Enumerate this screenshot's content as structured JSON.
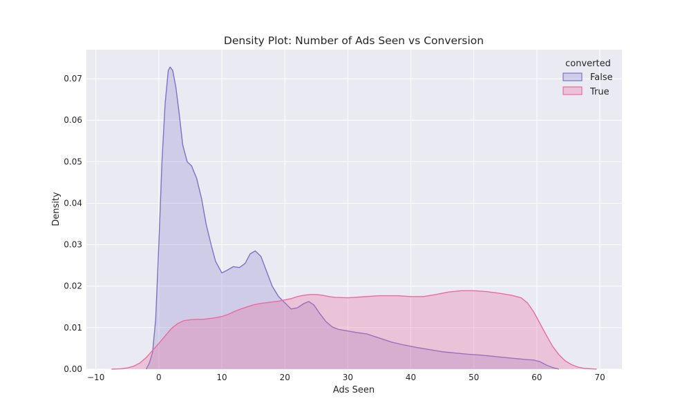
{
  "chart_data": {
    "type": "area",
    "title": "Density Plot: Number of Ads Seen vs Conversion",
    "xlabel": "Ads Seen",
    "ylabel": "Density",
    "xlim": [
      -11.5,
      73.5
    ],
    "ylim": [
      0,
      0.077
    ],
    "x_ticks": [
      -10,
      0,
      10,
      20,
      30,
      40,
      50,
      60,
      70
    ],
    "y_ticks": [
      0.0,
      0.01,
      0.02,
      0.03,
      0.04,
      0.05,
      0.06,
      0.07
    ],
    "x_tick_labels": [
      "−10",
      "0",
      "10",
      "20",
      "30",
      "40",
      "50",
      "60",
      "70"
    ],
    "y_tick_labels": [
      "0.00",
      "0.01",
      "0.02",
      "0.03",
      "0.04",
      "0.05",
      "0.06",
      "0.07"
    ],
    "grid": true,
    "legend": {
      "title": "converted",
      "placement": "top-right",
      "entries": [
        "False",
        "True"
      ]
    },
    "series": [
      {
        "name": "False",
        "color": "#7b72c8",
        "fill": "rgba(123,114,200,0.25)",
        "points": [
          [
            -2.0,
            0.0
          ],
          [
            -1.5,
            0.0015
          ],
          [
            -1.0,
            0.004
          ],
          [
            -0.5,
            0.012
          ],
          [
            0.0,
            0.03
          ],
          [
            0.5,
            0.05
          ],
          [
            1.0,
            0.064
          ],
          [
            1.5,
            0.072
          ],
          [
            1.8,
            0.0728
          ],
          [
            2.2,
            0.072
          ],
          [
            2.7,
            0.068
          ],
          [
            3.2,
            0.062
          ],
          [
            3.8,
            0.054
          ],
          [
            4.5,
            0.05
          ],
          [
            5.2,
            0.049
          ],
          [
            6.0,
            0.046
          ],
          [
            6.8,
            0.041
          ],
          [
            7.5,
            0.035
          ],
          [
            8.3,
            0.03
          ],
          [
            9.0,
            0.026
          ],
          [
            10.0,
            0.0232
          ],
          [
            10.8,
            0.0238
          ],
          [
            11.8,
            0.0247
          ],
          [
            12.8,
            0.0245
          ],
          [
            13.7,
            0.0255
          ],
          [
            14.5,
            0.0278
          ],
          [
            15.3,
            0.0285
          ],
          [
            16.2,
            0.0272
          ],
          [
            17.0,
            0.024
          ],
          [
            18.0,
            0.02
          ],
          [
            19.0,
            0.0175
          ],
          [
            20.0,
            0.016
          ],
          [
            21.0,
            0.0145
          ],
          [
            22.0,
            0.0148
          ],
          [
            23.0,
            0.0158
          ],
          [
            23.8,
            0.0163
          ],
          [
            24.6,
            0.0155
          ],
          [
            25.5,
            0.0135
          ],
          [
            26.5,
            0.0115
          ],
          [
            27.5,
            0.0102
          ],
          [
            28.5,
            0.0096
          ],
          [
            30.0,
            0.0092
          ],
          [
            31.5,
            0.0088
          ],
          [
            33.0,
            0.0085
          ],
          [
            35.0,
            0.0075
          ],
          [
            37.0,
            0.0065
          ],
          [
            39.0,
            0.0058
          ],
          [
            41.0,
            0.0052
          ],
          [
            43.0,
            0.0047
          ],
          [
            45.0,
            0.0042
          ],
          [
            47.0,
            0.0039
          ],
          [
            49.0,
            0.0036
          ],
          [
            51.0,
            0.0034
          ],
          [
            53.0,
            0.0031
          ],
          [
            55.0,
            0.0028
          ],
          [
            57.0,
            0.0025
          ],
          [
            58.5,
            0.0023
          ],
          [
            59.5,
            0.0022
          ],
          [
            60.5,
            0.0018
          ],
          [
            61.5,
            0.001
          ],
          [
            62.5,
            0.0004
          ],
          [
            63.5,
            0.0
          ]
        ]
      },
      {
        "name": "True",
        "color": "#ec6a9c",
        "fill": "rgba(236,106,156,0.30)",
        "points": [
          [
            -7.5,
            0.0
          ],
          [
            -6.0,
            0.0001
          ],
          [
            -5.0,
            0.0003
          ],
          [
            -4.0,
            0.0007
          ],
          [
            -3.0,
            0.0015
          ],
          [
            -2.0,
            0.0028
          ],
          [
            -1.0,
            0.0045
          ],
          [
            0.0,
            0.0062
          ],
          [
            1.0,
            0.008
          ],
          [
            2.0,
            0.0098
          ],
          [
            3.0,
            0.011
          ],
          [
            4.0,
            0.0117
          ],
          [
            5.0,
            0.0119
          ],
          [
            6.0,
            0.012
          ],
          [
            7.0,
            0.012
          ],
          [
            8.0,
            0.0122
          ],
          [
            9.0,
            0.0124
          ],
          [
            10.0,
            0.0127
          ],
          [
            11.0,
            0.0132
          ],
          [
            12.0,
            0.0139
          ],
          [
            13.0,
            0.0145
          ],
          [
            14.0,
            0.015
          ],
          [
            15.0,
            0.0155
          ],
          [
            16.0,
            0.0158
          ],
          [
            17.0,
            0.016
          ],
          [
            18.0,
            0.0162
          ],
          [
            19.0,
            0.0164
          ],
          [
            20.0,
            0.0167
          ],
          [
            21.0,
            0.017
          ],
          [
            22.0,
            0.0175
          ],
          [
            23.0,
            0.0178
          ],
          [
            24.0,
            0.018
          ],
          [
            25.0,
            0.018
          ],
          [
            26.0,
            0.0178
          ],
          [
            27.0,
            0.0175
          ],
          [
            28.0,
            0.0173
          ],
          [
            30.0,
            0.0172
          ],
          [
            32.0,
            0.0174
          ],
          [
            35.0,
            0.0177
          ],
          [
            38.0,
            0.0177
          ],
          [
            40.0,
            0.0175
          ],
          [
            42.0,
            0.0175
          ],
          [
            44.0,
            0.018
          ],
          [
            46.0,
            0.0186
          ],
          [
            48.0,
            0.0189
          ],
          [
            50.0,
            0.0189
          ],
          [
            52.0,
            0.0187
          ],
          [
            54.0,
            0.0183
          ],
          [
            56.0,
            0.0178
          ],
          [
            57.5,
            0.0172
          ],
          [
            58.5,
            0.016
          ],
          [
            59.5,
            0.0138
          ],
          [
            60.5,
            0.011
          ],
          [
            61.5,
            0.0082
          ],
          [
            62.5,
            0.0055
          ],
          [
            63.5,
            0.0035
          ],
          [
            64.5,
            0.002
          ],
          [
            65.5,
            0.0011
          ],
          [
            66.5,
            0.0005
          ],
          [
            67.5,
            0.0002
          ],
          [
            69.5,
            0.0
          ]
        ]
      }
    ]
  }
}
